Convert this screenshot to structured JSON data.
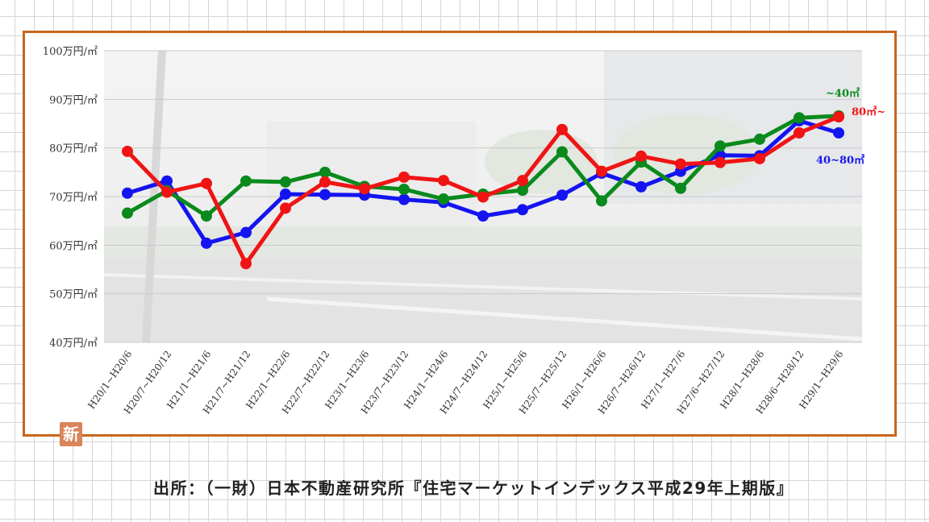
{
  "source_text": "出所：（一財）日本不動産研究所『住宅マーケットインデックス平成29年上期版』",
  "logo_char": "新",
  "chart_data": {
    "type": "line",
    "title": "",
    "xlabel": "",
    "ylabel": "",
    "ylim": [
      40,
      100
    ],
    "y_ticks": [
      {
        "value": 100,
        "label": "100万円/㎡"
      },
      {
        "value": 90,
        "label": "90万円/㎡"
      },
      {
        "value": 80,
        "label": "80万円/㎡"
      },
      {
        "value": 70,
        "label": "70万円/㎡"
      },
      {
        "value": 60,
        "label": "60万円/㎡"
      },
      {
        "value": 50,
        "label": "50万円/㎡"
      },
      {
        "value": 40,
        "label": "40万円/㎡"
      }
    ],
    "grid": true,
    "categories": [
      "H20/1~H20/6",
      "H20/7~H20/12",
      "H21/1~H21/6",
      "H21/7~H21/12",
      "H22/1~H22/6",
      "H22/7~H22/12",
      "H23/1~H23/6",
      "H23/7~H23/12",
      "H24/1~H24/6",
      "H24/7~H24/12",
      "H25/1~H25/6",
      "H25/7~H25/12",
      "H26/1~H26/6",
      "H26/7~H26/12",
      "H27/1~H27/6",
      "H27/6~H27/12",
      "H28/1~H28/6",
      "H28/6~H28/12",
      "H29/1~H29/6"
    ],
    "series": [
      {
        "name": "40~80㎡",
        "color": "#1414f0",
        "values": [
          70.7,
          73.2,
          60.4,
          62.6,
          70.5,
          70.4,
          70.3,
          69.4,
          68.8,
          66.0,
          67.3,
          70.3,
          74.8,
          72.0,
          75.2,
          78.5,
          78.4,
          85.6,
          83.1
        ]
      },
      {
        "name": "~40㎡",
        "color": "#0a8a1c",
        "values": [
          66.6,
          71.2,
          66.0,
          73.2,
          73.0,
          75.0,
          72.1,
          71.5,
          69.5,
          70.5,
          71.3,
          79.2,
          69.1,
          77.1,
          71.7,
          80.4,
          81.8,
          86.2,
          86.6
        ]
      },
      {
        "name": "80㎡~",
        "color": "#f01414",
        "values": [
          79.3,
          70.9,
          72.7,
          56.2,
          67.6,
          73.0,
          71.6,
          74.0,
          73.3,
          69.9,
          73.3,
          83.8,
          75.2,
          78.3,
          76.7,
          77.0,
          77.8,
          83.1,
          86.4
        ]
      }
    ],
    "legend_placement": "right (inline labels at line ends)"
  }
}
